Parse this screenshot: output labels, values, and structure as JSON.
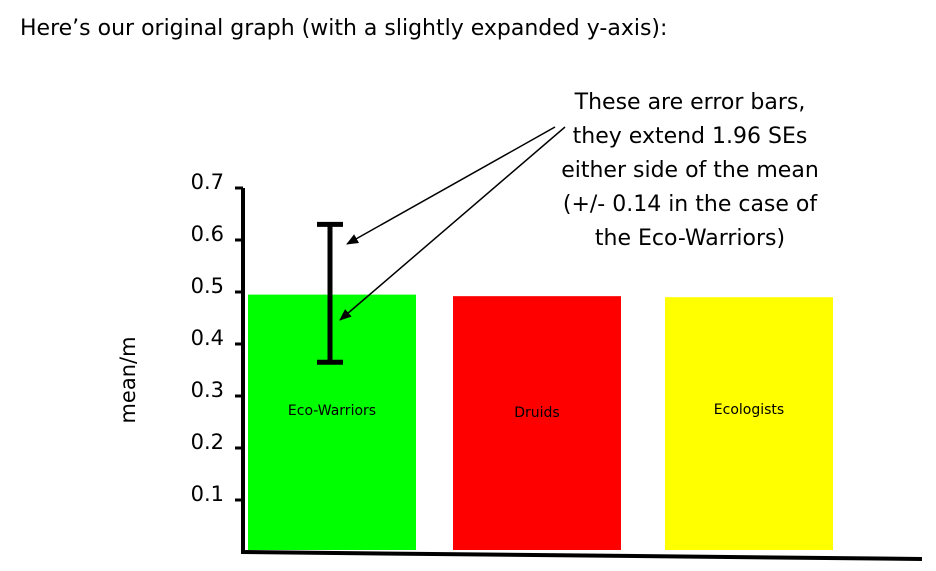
{
  "heading": "Here’s our original graph (with a slightly expanded y-axis):",
  "annotation": {
    "lines": [
      "These are error bars,",
      "they extend 1.96 SEs",
      "either side of the mean",
      "(+/- 0.14 in the case of",
      "the Eco-Warriors)"
    ]
  },
  "chart_data": {
    "type": "bar",
    "ylabel": "mean/m",
    "ylim": [
      0,
      0.7
    ],
    "yticks": [
      0.1,
      0.2,
      0.3,
      0.4,
      0.5,
      0.6,
      0.7
    ],
    "ytick_labels": [
      "0.1",
      "0.2",
      "0.3",
      "0.4",
      "0.5",
      "0.6",
      "0.7"
    ],
    "categories": [
      "Eco-Warriors",
      "Druids",
      "Ecologists"
    ],
    "values": [
      0.495,
      0.492,
      0.49
    ],
    "colors": [
      "#00ff00",
      "#ff0000",
      "#ffff00"
    ],
    "error_bars": [
      {
        "category": "Eco-Warriors",
        "low": 0.365,
        "high": 0.63
      }
    ]
  }
}
